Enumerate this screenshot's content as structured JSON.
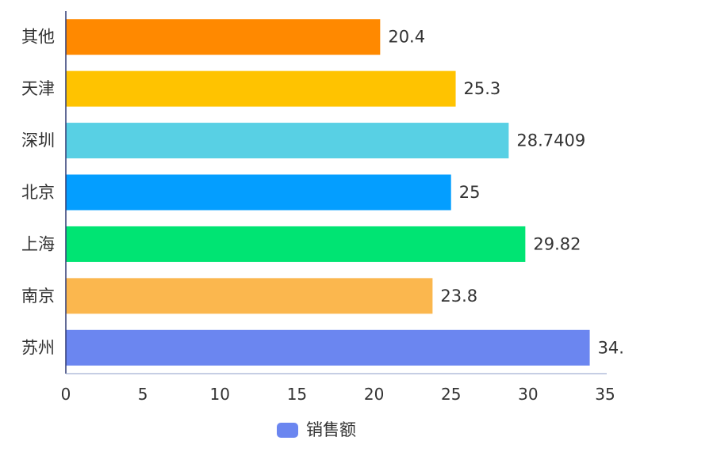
{
  "chart_data": {
    "type": "bar",
    "orientation": "horizontal",
    "categories": [
      "苏州",
      "南京",
      "上海",
      "北京",
      "深圳",
      "天津",
      "其他"
    ],
    "series": [
      {
        "name": "销售额",
        "values": [
          34,
          23.8,
          29.82,
          25,
          28.7409,
          25.3,
          20.4
        ],
        "value_labels": [
          "34.",
          "23.8",
          "29.82",
          "25",
          "28.7409",
          "25.3",
          "20.4"
        ],
        "colors": [
          "#6b86f0",
          "#fbb74e",
          "#00e473",
          "#049eff",
          "#58d0e4",
          "#ffc300",
          "#ff8900"
        ]
      }
    ],
    "xlim": [
      0,
      35
    ],
    "xticks": [
      "0",
      "5",
      "10",
      "15",
      "20",
      "25",
      "30",
      "35"
    ],
    "grid": false,
    "legend": {
      "position": "bottom-center",
      "color": "#6b86f0"
    }
  }
}
